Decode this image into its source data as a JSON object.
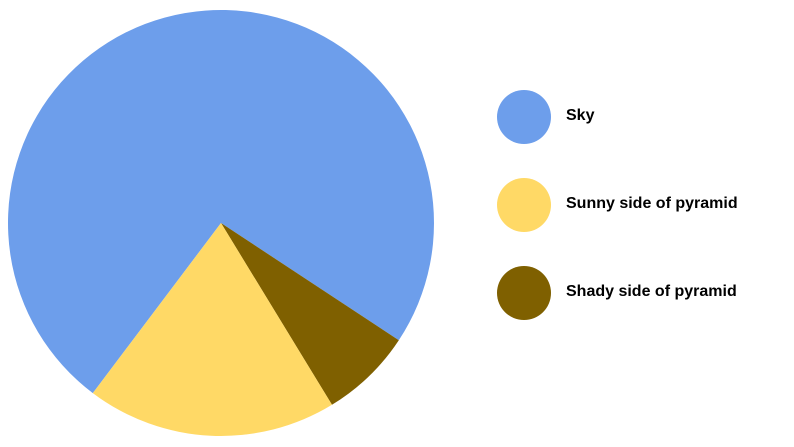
{
  "chart_data": {
    "type": "pie",
    "title": "",
    "start_angle_deg": 217,
    "direction": "clockwise",
    "slices": [
      {
        "label": "Sky",
        "value": 0.74,
        "color": "#6d9eeb"
      },
      {
        "label": "Shady side of pyramid",
        "value": 0.07,
        "color": "#7f6000"
      },
      {
        "label": "Sunny side of pyramid",
        "value": 0.19,
        "color": "#ffd966"
      }
    ],
    "legend_position": "right",
    "legend": [
      {
        "label": "Sky",
        "color": "#6d9eeb"
      },
      {
        "label": "Sunny side of pyramid",
        "color": "#ffd966"
      },
      {
        "label": "Shady side of pyramid",
        "color": "#7f6000"
      }
    ]
  }
}
